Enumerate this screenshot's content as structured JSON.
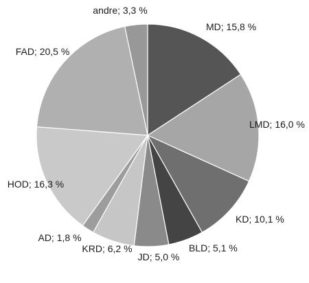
{
  "chart_data": {
    "type": "pie",
    "title": "",
    "slices": [
      {
        "label": "MD; 15,8 %",
        "value": 15.8,
        "color": "#555555"
      },
      {
        "label": "LMD; 16,0 %",
        "value": 16.0,
        "color": "#a6a6a6"
      },
      {
        "label": "KD; 10,1 %",
        "value": 10.1,
        "color": "#6f6f6f"
      },
      {
        "label": "BLD; 5,1 %",
        "value": 5.1,
        "color": "#444444"
      },
      {
        "label": "JD; 5,0 %",
        "value": 5.0,
        "color": "#8a8a8a"
      },
      {
        "label": "KRD; 6,2 %",
        "value": 6.2,
        "color": "#c6c6c6"
      },
      {
        "label": "AD; 1,8 %",
        "value": 1.8,
        "color": "#9d9d9d"
      },
      {
        "label": "HOD; 16,3 %",
        "value": 16.3,
        "color": "#c9c9c9"
      },
      {
        "label": "FAD; 20,5 %",
        "value": 20.5,
        "color": "#b0b0b0"
      },
      {
        "label": "andre; 3,3 %",
        "value": 3.3,
        "color": "#989898"
      }
    ],
    "start_angle": "12 o'clock",
    "direction": "clockwise",
    "legend": "none"
  }
}
